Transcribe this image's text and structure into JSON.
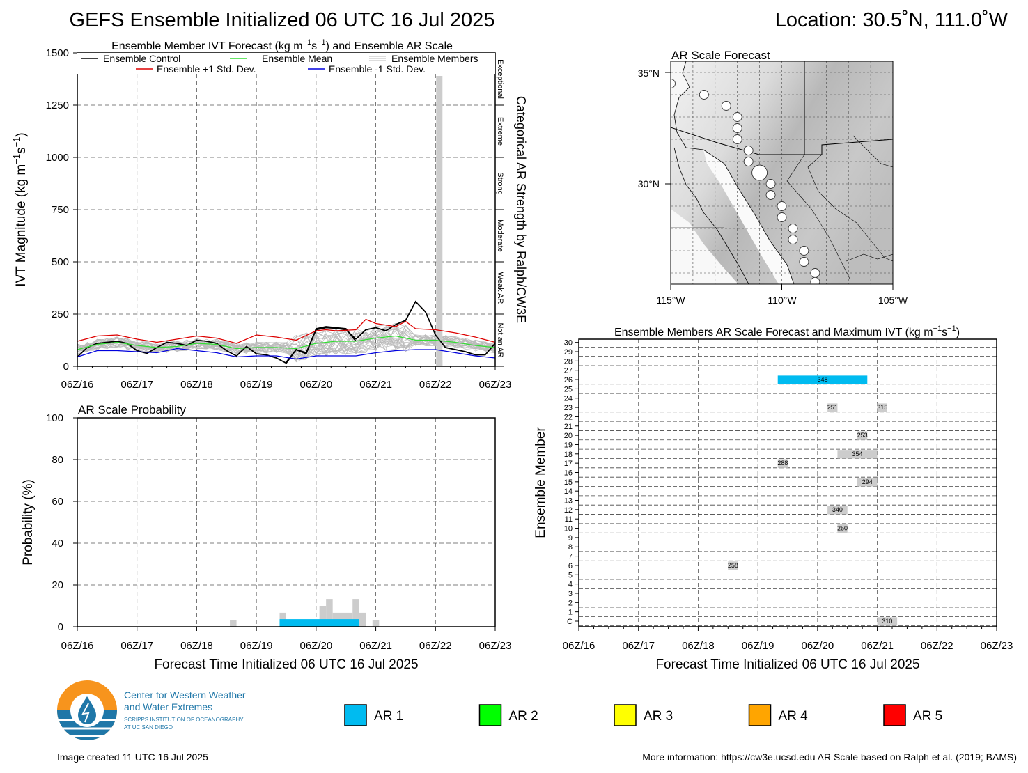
{
  "header": {
    "title": "GEFS Ensemble Initialized 06 UTC 16 Jul 2025",
    "location": "Location: 30.5˚N, 111.0˚W"
  },
  "colors": {
    "control": "#000000",
    "mean": "#33dd33",
    "plus1": "#dd0000",
    "minus1": "#0000dd",
    "members": "#bbbbbb",
    "bars": "#cccccc",
    "ar1": "#00bbf0",
    "ar2": "#00ff00",
    "ar3": "#ffff00",
    "ar4": "#ffa500",
    "ar5": "#ff0000"
  },
  "ivt_panel": {
    "title_parts": [
      "Ensemble Member IVT Forecast (kg m",
      "−1",
      "s",
      "−1",
      ") and Ensemble AR Scale"
    ],
    "ylabel_parts": [
      "IVT Magnitude (kg m",
      "−1",
      "s",
      "−1",
      ")"
    ],
    "right_label": "Categorical AR Strength by Ralph/CW3E",
    "yticks": [
      0,
      250,
      500,
      750,
      1000,
      1250,
      1500
    ],
    "xticks": [
      "06Z/16",
      "06Z/17",
      "06Z/18",
      "06Z/19",
      "06Z/20",
      "06Z/21",
      "06Z/22",
      "06Z/23"
    ],
    "categories": [
      {
        "label": "Not an AR",
        "from": 0,
        "to": 250
      },
      {
        "label": "Weak AR",
        "from": 250,
        "to": 500
      },
      {
        "label": "Moderate",
        "from": 500,
        "to": 750
      },
      {
        "label": "Strong",
        "from": 750,
        "to": 1000
      },
      {
        "label": "Extreme",
        "from": 1000,
        "to": 1250
      },
      {
        "label": "Exceptional",
        "from": 1250,
        "to": 1500
      }
    ],
    "legend": {
      "control": "Ensemble Control",
      "mean": "Ensemble Mean",
      "members": "Ensemble Members",
      "plus1": "Ensemble +1 Std. Dev.",
      "minus1": "Ensemble -1 Std. Dev."
    }
  },
  "prob_panel": {
    "title": "AR Scale Probability",
    "ylabel": "Probability (%)",
    "xlabel": "Forecast Time Initialized 06 UTC 16 Jul 2025",
    "yticks": [
      0,
      20,
      40,
      60,
      80,
      100
    ],
    "xticks": [
      "06Z/16",
      "06Z/17",
      "06Z/18",
      "06Z/19",
      "06Z/20",
      "06Z/21",
      "06Z/22",
      "06Z/23"
    ]
  },
  "map_panel": {
    "title": "AR Scale Forecast",
    "lat_labels": [
      "35°N",
      "30°N"
    ],
    "lon_labels": [
      "115°W",
      "110°W",
      "105°W"
    ]
  },
  "members_panel": {
    "title_parts": [
      "Ensemble Members AR Scale Forecast and Maximum IVT (kg m",
      "−1",
      "s",
      "−1",
      ")"
    ],
    "ylabel": "Ensemble Member",
    "xlabel": "Forecast Time Initialized 06 UTC 16 Jul 2025",
    "member_labels": [
      "C",
      "1",
      "2",
      "3",
      "4",
      "5",
      "6",
      "7",
      "8",
      "9",
      "10",
      "11",
      "12",
      "13",
      "14",
      "15",
      "16",
      "17",
      "18",
      "19",
      "20",
      "21",
      "22",
      "23",
      "24",
      "25",
      "26",
      "27",
      "28",
      "29",
      "30"
    ],
    "xticks": [
      "06Z/16",
      "06Z/17",
      "06Z/18",
      "06Z/19",
      "06Z/20",
      "06Z/21",
      "06Z/22",
      "06Z/23"
    ]
  },
  "legend_ar": [
    {
      "label": "AR 1",
      "color": "#00bbf0"
    },
    {
      "label": "AR 2",
      "color": "#00ff00"
    },
    {
      "label": "AR 3",
      "color": "#ffff00"
    },
    {
      "label": "AR 4",
      "color": "#ffa500"
    },
    {
      "label": "AR 5",
      "color": "#ff0000"
    }
  ],
  "logo": {
    "line1": "Center for Western Weather",
    "line2": "and Water Extremes",
    "line3": "SCRIPPS INSTITUTION OF OCEANOGRAPHY",
    "line4": "AT UC SAN DIEGO"
  },
  "footer": {
    "created": "Image created 11 UTC 16 Jul 2025",
    "more_info": "More information: https://cw3e.ucsd.edu AR Scale based on Ralph et al. (2019; BAMS)"
  },
  "chart_data": [
    {
      "type": "line",
      "x_unit": "forecast hour",
      "series": [
        {
          "name": "Ensemble Control",
          "x": [
            0,
            6,
            12,
            18,
            24,
            30,
            36,
            42,
            48,
            54,
            60,
            66,
            72,
            78,
            84,
            90,
            96,
            102,
            108,
            114,
            120,
            126,
            132,
            138,
            144,
            150,
            156,
            162,
            168
          ],
          "y": [
            45,
            90,
            110,
            115,
            120,
            110,
            75,
            62,
            90,
            115,
            110,
            100,
            125,
            120,
            110,
            75,
            50,
            95,
            60,
            55,
            40,
            15,
            80,
            60,
            180,
            190,
            185,
            180,
            120
          ]
        },
        {
          "name": "Ensemble Control",
          "x": [
            126,
            132,
            138,
            144,
            150,
            156,
            162,
            168
          ],
          "y": [
            20,
            80,
            65,
            175,
            185,
            182,
            175,
            130
          ]
        },
        {
          "name": "Ensemble Control",
          "x": [
            168,
            174,
            180,
            186,
            192,
            198,
            204,
            210,
            216,
            222,
            228,
            234,
            240,
            246,
            252
          ],
          "y": [
            130,
            175,
            185,
            170,
            200,
            220,
            310,
            260,
            150,
            90,
            80,
            70,
            55,
            55,
            110
          ]
        },
        {
          "name": "Ensemble Mean",
          "x": [
            0,
            12,
            24,
            36,
            48,
            60,
            72,
            84,
            96,
            108,
            120,
            132,
            144,
            156,
            168,
            180,
            192,
            204,
            216,
            228,
            240,
            252
          ],
          "y": [
            80,
            105,
            115,
            100,
            90,
            95,
            110,
            105,
            85,
            90,
            90,
            85,
            110,
            120,
            120,
            135,
            145,
            125,
            125,
            115,
            100,
            90
          ]
        },
        {
          "name": "Ensemble +1 Std. Dev.",
          "x": [
            0,
            12,
            24,
            36,
            48,
            60,
            72,
            84,
            96,
            108,
            120,
            132,
            144,
            150,
            156,
            168,
            174,
            180,
            192,
            198,
            204,
            216,
            228,
            240,
            252
          ],
          "y": [
            120,
            145,
            150,
            130,
            115,
            130,
            145,
            135,
            110,
            150,
            140,
            125,
            170,
            175,
            170,
            175,
            225,
            205,
            190,
            215,
            180,
            175,
            160,
            140,
            115
          ]
        },
        {
          "name": "Ensemble -1 Std. Dev.",
          "x": [
            0,
            12,
            24,
            36,
            48,
            60,
            72,
            84,
            96,
            108,
            120,
            132,
            144,
            156,
            168,
            180,
            192,
            204,
            216,
            228,
            240,
            252
          ],
          "y": [
            45,
            75,
            75,
            70,
            65,
            85,
            75,
            65,
            45,
            50,
            50,
            35,
            50,
            50,
            50,
            65,
            75,
            80,
            80,
            65,
            50,
            40
          ]
        }
      ],
      "bars": [
        {
          "x": 216,
          "y": 1390
        },
        {
          "x": 216,
          "y": 30
        }
      ],
      "ylim": [
        0,
        1500
      ]
    },
    {
      "type": "bar",
      "x_unit": "forecast hour",
      "gray_bars": [
        {
          "x_from": 92,
          "x_to": 96,
          "y": 3.3
        },
        {
          "x_from": 122,
          "x_to": 126,
          "y": 6.7
        },
        {
          "x_from": 146,
          "x_to": 150,
          "y": 10
        },
        {
          "x_from": 150,
          "x_to": 154,
          "y": 13.3
        },
        {
          "x_from": 154,
          "x_to": 166,
          "y": 6.7
        },
        {
          "x_from": 166,
          "x_to": 170,
          "y": 13.3
        },
        {
          "x_from": 170,
          "x_to": 174,
          "y": 6.7
        },
        {
          "x_from": 178,
          "x_to": 182,
          "y": 3.3
        }
      ],
      "ar1_bars": [
        {
          "x_from": 122,
          "x_to": 170,
          "y": 3.3
        }
      ],
      "ylim": [
        0,
        100
      ]
    },
    {
      "type": "heatmap",
      "x_unit": "forecast hour",
      "events": [
        {
          "member": "26",
          "x_from": 120,
          "x_to": 174,
          "category": "AR 1",
          "max_ivt": 348
        },
        {
          "member": "23",
          "x_from": 150,
          "x_to": 156,
          "category": "none",
          "max_ivt": 251
        },
        {
          "member": "23",
          "x_from": 180,
          "x_to": 186,
          "category": "none",
          "max_ivt": 315
        },
        {
          "member": "20",
          "x_from": 168,
          "x_to": 174,
          "category": "none",
          "max_ivt": 253
        },
        {
          "member": "18",
          "x_from": 156,
          "x_to": 180,
          "category": "none",
          "max_ivt": 354
        },
        {
          "member": "17",
          "x_from": 120,
          "x_to": 126,
          "category": "none",
          "max_ivt": 288
        },
        {
          "member": "15",
          "x_from": 168,
          "x_to": 180,
          "category": "none",
          "max_ivt": 294
        },
        {
          "member": "12",
          "x_from": 150,
          "x_to": 162,
          "category": "none",
          "max_ivt": 340
        },
        {
          "member": "10",
          "x_from": 156,
          "x_to": 162,
          "category": "none",
          "max_ivt": 250
        },
        {
          "member": "6",
          "x_from": 90,
          "x_to": 96,
          "category": "none",
          "max_ivt": 258
        },
        {
          "member": "C",
          "x_from": 180,
          "x_to": 192,
          "category": "none",
          "max_ivt": 310
        }
      ]
    },
    {
      "type": "scatter",
      "description_units": "lon/lat",
      "points": [
        {
          "lon": -115.0,
          "lat": 34.5,
          "size": 1
        },
        {
          "lon": -113.5,
          "lat": 34.0,
          "size": 1
        },
        {
          "lon": -112.5,
          "lat": 33.5,
          "size": 1
        },
        {
          "lon": -112.0,
          "lat": 33.0,
          "size": 1
        },
        {
          "lon": -112.0,
          "lat": 32.5,
          "size": 1
        },
        {
          "lon": -112.0,
          "lat": 32.0,
          "size": 1
        },
        {
          "lon": -111.5,
          "lat": 31.5,
          "size": 1
        },
        {
          "lon": -111.5,
          "lat": 31.0,
          "size": 1
        },
        {
          "lon": -111.0,
          "lat": 30.5,
          "size": 2
        },
        {
          "lon": -110.5,
          "lat": 30.0,
          "size": 1
        },
        {
          "lon": -110.5,
          "lat": 29.5,
          "size": 1
        },
        {
          "lon": -110.0,
          "lat": 29.0,
          "size": 1
        },
        {
          "lon": -110.0,
          "lat": 28.5,
          "size": 1
        },
        {
          "lon": -109.5,
          "lat": 28.0,
          "size": 1
        },
        {
          "lon": -109.5,
          "lat": 27.5,
          "size": 1
        },
        {
          "lon": -109.0,
          "lat": 27.0,
          "size": 1
        },
        {
          "lon": -109.0,
          "lat": 26.5,
          "size": 1
        },
        {
          "lon": -108.5,
          "lat": 26.0,
          "size": 1
        },
        {
          "lon": -108.5,
          "lat": 25.6,
          "size": 1
        }
      ],
      "xlim": [
        -115,
        -105
      ],
      "ylim": [
        25.5,
        35.5
      ]
    }
  ]
}
